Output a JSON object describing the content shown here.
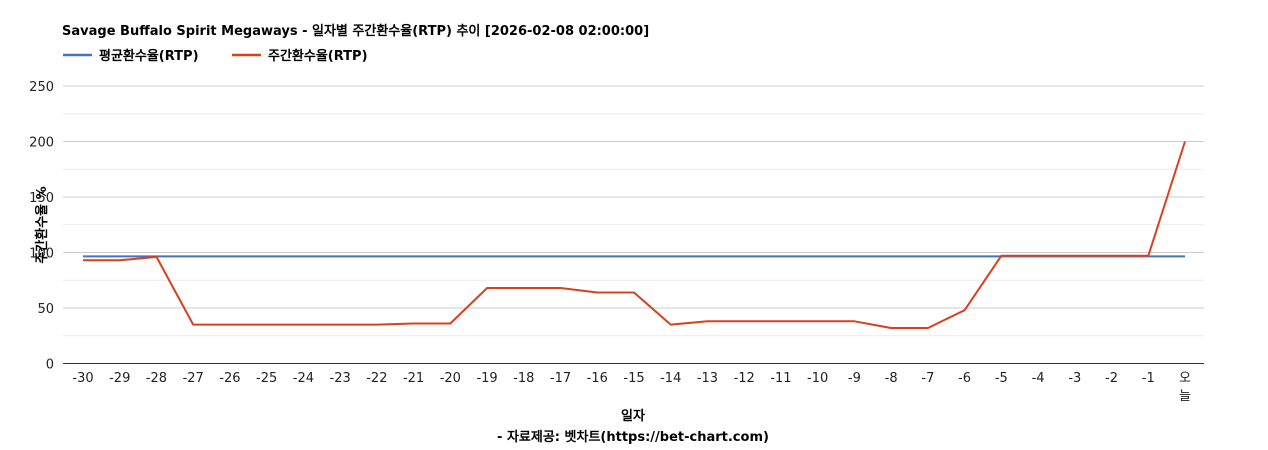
{
  "colors": {
    "avg_series": "#4472c4",
    "weekly_series": "#d9401e"
  },
  "chart_data": {
    "type": "line",
    "title": "Savage Buffalo Spirit Megaways - 일자별 주간환수율(RTP) 추이 [2026-02-08 02:00:00]",
    "xlabel": "일자",
    "ylabel": "주간환수율 %",
    "source": "- 자료제공: 벳차트(https://bet-chart.com)",
    "ylim": [
      0,
      250
    ],
    "yticks": [
      "0",
      "50",
      "100",
      "150",
      "200",
      "250"
    ],
    "grid": true,
    "legend_position": "top-left",
    "categories": [
      "-30",
      "-29",
      "-28",
      "-27",
      "-26",
      "-25",
      "-24",
      "-23",
      "-22",
      "-21",
      "-20",
      "-19",
      "-18",
      "-17",
      "-16",
      "-15",
      "-14",
      "-13",
      "-12",
      "-11",
      "-10",
      "-9",
      "-8",
      "-7",
      "-6",
      "-5",
      "-4",
      "-3",
      "-2",
      "-1",
      "오늘"
    ],
    "series": [
      {
        "name": "평균환수율(RTP)",
        "color": "#4472c4",
        "values": [
          96.5,
          96.5,
          96.5,
          96.5,
          96.5,
          96.5,
          96.5,
          96.5,
          96.5,
          96.5,
          96.5,
          96.5,
          96.5,
          96.5,
          96.5,
          96.5,
          96.5,
          96.5,
          96.5,
          96.5,
          96.5,
          96.5,
          96.5,
          96.5,
          96.5,
          96.5,
          96.5,
          96.5,
          96.5,
          96.5,
          96.5
        ]
      },
      {
        "name": "주간환수율(RTP)",
        "color": "#d9401e",
        "values": [
          93,
          93,
          96,
          35,
          35,
          35,
          35,
          35,
          35,
          36,
          36,
          68,
          68,
          68,
          64,
          64,
          35,
          38,
          38,
          38,
          38,
          38,
          32,
          32,
          48,
          97,
          97,
          97,
          97,
          97,
          200
        ]
      }
    ]
  }
}
